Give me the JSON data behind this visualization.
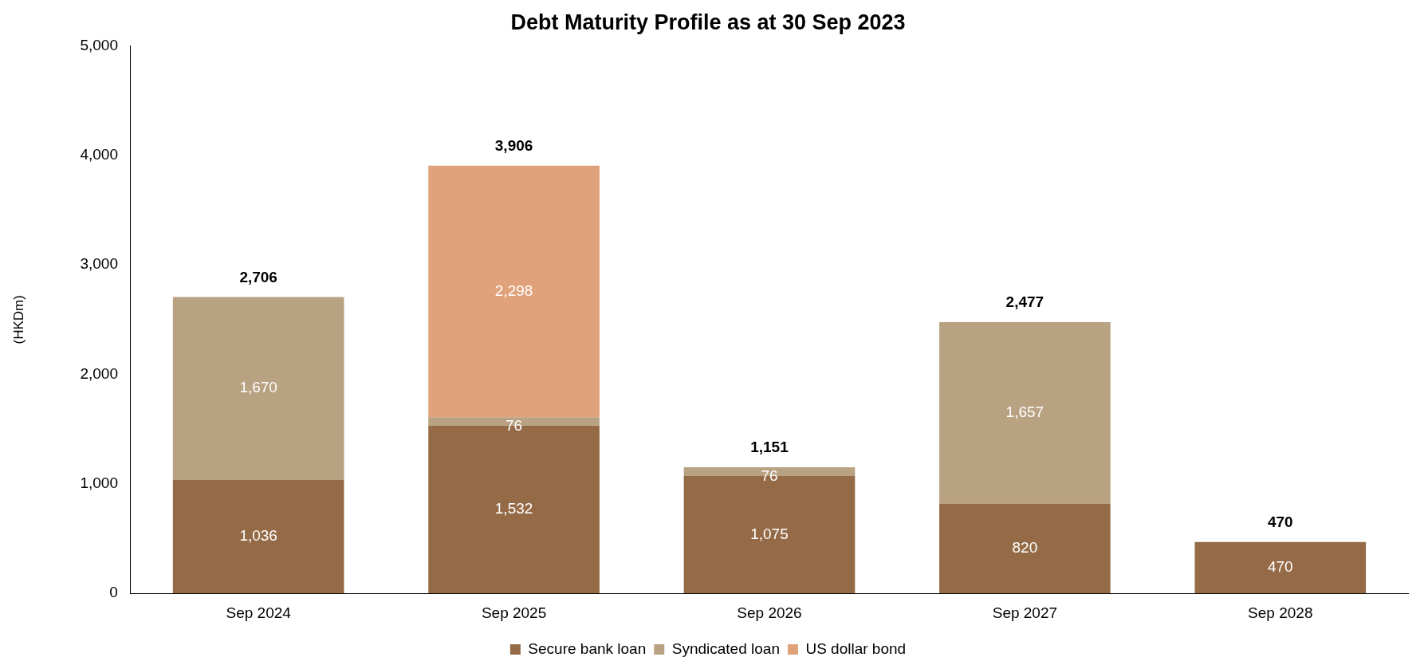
{
  "chart_data": {
    "type": "bar",
    "title": "Debt Maturity Profile as at 30 Sep 2023",
    "ylabel": "(HKDm)",
    "stacked": true,
    "legend": "bottom",
    "grid": false,
    "categories": [
      "Sep 2024",
      "Sep 2025",
      "Sep 2026",
      "Sep 2027",
      "Sep 2028"
    ],
    "series": [
      {
        "name": "Secure bank loan",
        "color": "#956b47",
        "values": [
          1036,
          1532,
          1075,
          820,
          470
        ],
        "value_labels": [
          "1,036",
          "1,532",
          "1,075",
          "820",
          "470"
        ]
      },
      {
        "name": "Syndicated loan",
        "color": "#b8a282",
        "values": [
          1670,
          76,
          76,
          1657,
          null
        ],
        "value_labels": [
          "1,670",
          "76",
          "76",
          "1,657",
          null
        ]
      },
      {
        "name": "US dollar bond",
        "color": "#e0a27a",
        "values": [
          null,
          2298,
          null,
          null,
          null
        ],
        "value_labels": [
          null,
          "2,298",
          null,
          null,
          null
        ]
      }
    ],
    "totals": [
      "2,706",
      "3,906",
      "1,151",
      "2,477",
      "470"
    ],
    "ylim": [
      0,
      5000
    ],
    "yticks": [
      {
        "value": 0,
        "label": "0"
      },
      {
        "value": 1000,
        "label": "1,000"
      },
      {
        "value": 2000,
        "label": "2,000"
      },
      {
        "value": 3000,
        "label": "3,000"
      },
      {
        "value": 4000,
        "label": "4,000"
      },
      {
        "value": 5000,
        "label": "5,000"
      }
    ]
  }
}
